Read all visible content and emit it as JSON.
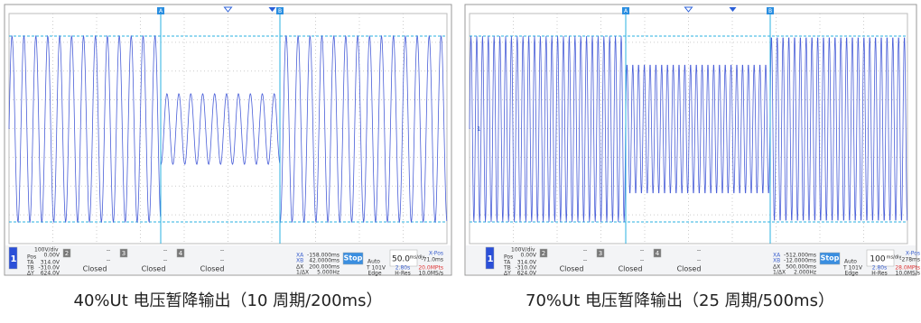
{
  "panels": [
    {
      "caption": "40%Ut 电压暂降输出（10 周期/200ms）",
      "marker_a": "A",
      "marker_b": "B",
      "status": [
        "1",
        "100V/div",
        "0.00V",
        "Pos",
        "TA",
        "314.0V",
        "TB",
        "-310.0V",
        "ΔY",
        "624.0V",
        "2",
        "--",
        "--",
        "Closed",
        "3",
        "--",
        "--",
        "Closed",
        "4",
        "--",
        "--",
        "Closed",
        "XA",
        "-158.000ms",
        "XB",
        "42.0000ms",
        "ΔX",
        "200.000ms",
        "1/ΔX",
        "5.000Hz",
        "Stop",
        "Auto",
        "T",
        "101V",
        "Edge",
        "50.0",
        "ms/div",
        "X-Pos",
        "-71.0ms",
        "2.80s",
        "20.0MPts",
        "H-Res",
        "10.0MS/s"
      ]
    },
    {
      "caption": "70%Ut 电压暂降输出（25 周期/500ms）",
      "marker_a": "A",
      "marker_b": "B",
      "channel_marker": "1",
      "status": [
        "1",
        "100V/div",
        "0.00V",
        "Pos",
        "TA",
        "314.0V",
        "TB",
        "-310.0V",
        "ΔY",
        "624.0V",
        "2",
        "--",
        "--",
        "Closed",
        "3",
        "--",
        "--",
        "Closed",
        "4",
        "--",
        "--",
        "Closed",
        "XA",
        "-512.000ms",
        "XB",
        "-12.0000ms",
        "ΔX",
        "500.000ms",
        "1/ΔX",
        "2.000Hz",
        "Stop",
        "Auto",
        "T",
        "101V",
        "Edge",
        "100",
        "ms/div",
        "X-Pos",
        "-278ms",
        "2.80s",
        "28.0MPts",
        "H-Res",
        "10.0MS/s"
      ]
    }
  ]
}
